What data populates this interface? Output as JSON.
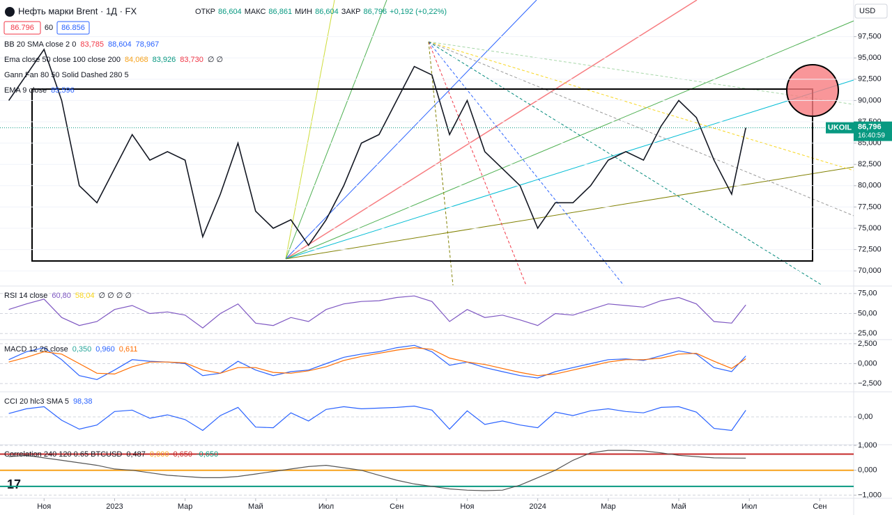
{
  "header": {
    "symbol": "Нефть марки Brent · 1Д · FX",
    "ohlc": [
      {
        "label": "ОТКР",
        "value": "86,604"
      },
      {
        "label": "МАКС",
        "value": "86,861"
      },
      {
        "label": "МИН",
        "value": "86,604"
      },
      {
        "label": "ЗАКР",
        "value": "86,796"
      }
    ],
    "change": "+0,192 (+0,22%)",
    "currency": "USD",
    "boxes": [
      "86.796",
      "60",
      "86.856"
    ]
  },
  "chart_data": [
    {
      "type": "line",
      "xlim": [
        -0.25,
        23.96
      ],
      "ylim": [
        68.3,
        101.8
      ],
      "yticks": [
        {
          "value": 70,
          "label": "70,000"
        },
        {
          "value": 72.5,
          "label": "72,500"
        },
        {
          "value": 75,
          "label": "75,000"
        },
        {
          "value": 77.5,
          "label": "77,500"
        },
        {
          "value": 80,
          "label": "80,000"
        },
        {
          "value": 82.5,
          "label": "82,500"
        },
        {
          "value": 85,
          "label": "85,000"
        },
        {
          "value": 87.5,
          "label": "87,500"
        },
        {
          "value": 90,
          "label": "90,000"
        },
        {
          "value": 92.5,
          "label": "92,500"
        },
        {
          "value": 95,
          "label": "95,000"
        },
        {
          "value": 97.5,
          "label": "97,500"
        }
      ],
      "x": [
        0,
        0.5,
        1,
        1.5,
        2,
        2.5,
        3,
        3.5,
        4,
        4.5,
        5,
        5.5,
        6,
        6.5,
        7,
        7.5,
        8,
        8.5,
        9,
        9.5,
        10,
        10.5,
        11,
        11.5,
        12,
        12.5,
        13,
        13.5,
        14,
        14.5,
        15,
        15.5,
        16,
        16.5,
        17,
        17.5,
        18,
        18.5,
        19,
        19.5,
        20,
        20.5,
        20.9
      ],
      "series": [
        {
          "color": "#131722",
          "values": [
            90,
            93,
            96,
            90,
            80,
            78,
            82,
            86,
            83,
            84,
            83,
            74,
            79,
            85,
            77,
            75,
            76,
            73,
            76,
            80,
            85,
            86,
            90,
            94,
            93,
            86,
            90,
            84,
            82,
            80,
            75,
            78,
            78,
            80,
            83,
            84,
            83,
            87,
            90,
            88,
            83,
            79,
            86.796
          ]
        }
      ],
      "last": {
        "value": 86.796,
        "label": "86,796",
        "symbol": "UKOIL",
        "time": "16:40:59"
      },
      "legend": [
        [
          {
            "text": "BB 20 SMA close 2 0",
            "color": "#131722"
          },
          {
            "text": "83,785",
            "color": "#f23645"
          },
          {
            "text": "88,604",
            "color": "#2962ff"
          },
          {
            "text": "78,967",
            "color": "#2962ff"
          }
        ],
        [
          {
            "text": "Ema close 50 close 100 close 200",
            "color": "#131722"
          },
          {
            "text": "84,068",
            "color": "#f7a21b"
          },
          {
            "text": "83,926",
            "color": "#089981"
          },
          {
            "text": "83,730",
            "color": "#f23645"
          },
          {
            "text": "∅ ∅",
            "color": "#131722"
          }
        ],
        [
          {
            "text": "Gann Fan 80 50 Solid Dashed 280 5",
            "color": "#131722"
          }
        ],
        [
          {
            "text": "EMA 9 close",
            "color": "#131722"
          },
          {
            "text": "85,596",
            "color": "#2962ff"
          }
        ]
      ]
    },
    {
      "type": "line",
      "xlim": [
        -0.25,
        23.96
      ],
      "ylim": [
        18.2,
        83.5
      ],
      "yticks": [
        {
          "value": 25,
          "label": "25,00"
        },
        {
          "value": 50,
          "label": "50,00"
        },
        {
          "value": 75,
          "label": "75,00"
        }
      ],
      "x": [
        0,
        0.5,
        1,
        1.5,
        2,
        2.5,
        3,
        3.5,
        4,
        4.5,
        5,
        5.5,
        6,
        6.5,
        7,
        7.5,
        8,
        8.5,
        9,
        9.5,
        10,
        10.5,
        11,
        11.5,
        12,
        12.5,
        13,
        13.5,
        14,
        14.5,
        15,
        15.5,
        16,
        16.5,
        17,
        17.5,
        18,
        18.5,
        19,
        19.5,
        20,
        20.5,
        20.9
      ],
      "series": [
        {
          "color": "#7e57c2",
          "values": [
            55,
            62,
            68,
            45,
            35,
            40,
            55,
            60,
            50,
            52,
            48,
            32,
            50,
            62,
            38,
            35,
            45,
            40,
            55,
            62,
            65,
            66,
            70,
            72,
            65,
            40,
            55,
            45,
            48,
            42,
            35,
            50,
            48,
            55,
            62,
            60,
            58,
            66,
            70,
            62,
            40,
            38,
            60.8
          ]
        }
      ],
      "legend": [
        [
          {
            "text": "RSI 14 close",
            "color": "#131722"
          },
          {
            "text": "60,80",
            "color": "#7e57c2"
          },
          {
            "text": "58,04",
            "color": "#f7d51b"
          },
          {
            "text": "∅ ∅ ∅ ∅",
            "color": "#131722"
          }
        ]
      ]
    },
    {
      "type": "line",
      "xlim": [
        -0.25,
        23.96
      ],
      "ylim": [
        -3.45,
        2.93
      ],
      "yticks": [
        {
          "value": -2.5,
          "label": "−2,500"
        },
        {
          "value": 0,
          "label": "0,000"
        },
        {
          "value": 2.5,
          "label": "2,500"
        }
      ],
      "x": [
        0,
        0.5,
        1,
        1.5,
        2,
        2.5,
        3,
        3.5,
        4,
        4.5,
        5,
        5.5,
        6,
        6.5,
        7,
        7.5,
        8,
        8.5,
        9,
        9.5,
        10,
        10.5,
        11,
        11.5,
        12,
        12.5,
        13,
        13.5,
        14,
        14.5,
        15,
        15.5,
        16,
        16.5,
        17,
        17.5,
        18,
        18.5,
        19,
        19.5,
        20,
        20.5,
        20.9
      ],
      "series": [
        {
          "color": "#2962ff",
          "values": [
            0.5,
            1.5,
            2.0,
            0.5,
            -1.5,
            -2.0,
            -0.8,
            0.5,
            0.3,
            0.2,
            0.0,
            -1.5,
            -1.2,
            0.3,
            -0.8,
            -1.5,
            -1.0,
            -0.8,
            0.0,
            0.8,
            1.2,
            1.5,
            2.0,
            2.3,
            1.5,
            -0.2,
            0.2,
            -0.5,
            -1.0,
            -1.5,
            -1.8,
            -1.0,
            -0.5,
            0.0,
            0.5,
            0.6,
            0.4,
            1.0,
            1.6,
            1.2,
            -0.5,
            -1.0,
            0.96
          ]
        },
        {
          "color": "#ff6d00",
          "values": [
            0.2,
            0.8,
            1.5,
            1.2,
            0.0,
            -1.2,
            -1.3,
            -0.4,
            0.2,
            0.2,
            0.1,
            -0.8,
            -1.2,
            -0.5,
            -0.5,
            -1.1,
            -1.2,
            -0.9,
            -0.4,
            0.4,
            0.9,
            1.3,
            1.7,
            2.0,
            1.8,
            0.7,
            0.2,
            -0.1,
            -0.6,
            -1.1,
            -1.5,
            -1.3,
            -0.8,
            -0.3,
            0.2,
            0.5,
            0.5,
            0.7,
            1.2,
            1.3,
            0.3,
            -0.6,
            0.611
          ]
        }
      ],
      "legend": [
        [
          {
            "text": "MACD 12 26 close",
            "color": "#131722"
          },
          {
            "text": "0,350",
            "color": "#26a69a"
          },
          {
            "text": "0,960",
            "color": "#2962ff"
          },
          {
            "text": "0,611",
            "color": "#ff6d00"
          }
        ]
      ]
    },
    {
      "type": "line",
      "xlim": [
        -0.25,
        23.96
      ],
      "ylim": [
        -400,
        360
      ],
      "yticks": [
        {
          "value": 0,
          "label": "0,00"
        }
      ],
      "x": [
        0,
        0.5,
        1,
        1.5,
        2,
        2.5,
        3,
        3.5,
        4,
        4.5,
        5,
        5.5,
        6,
        6.5,
        7,
        7.5,
        8,
        8.5,
        9,
        9.5,
        10,
        10.5,
        11,
        11.5,
        12,
        12.5,
        13,
        13.5,
        14,
        14.5,
        15,
        15.5,
        16,
        16.5,
        17,
        17.5,
        18,
        18.5,
        19,
        19.5,
        20,
        20.5,
        20.9
      ],
      "series": [
        {
          "color": "#2962ff",
          "values": [
            50,
            120,
            150,
            -50,
            -180,
            -120,
            80,
            100,
            -20,
            30,
            -40,
            -200,
            20,
            140,
            -150,
            -160,
            60,
            -60,
            110,
            150,
            120,
            130,
            140,
            160,
            100,
            -180,
            90,
            -110,
            -60,
            -120,
            -160,
            70,
            20,
            90,
            120,
            80,
            60,
            140,
            150,
            70,
            -170,
            -200,
            98.38
          ]
        }
      ],
      "legend": [
        [
          {
            "text": "CCI 20 hlc3 SMA 5",
            "color": "#131722"
          },
          {
            "text": "98,38",
            "color": "#2962ff"
          }
        ]
      ]
    },
    {
      "type": "line",
      "xlim": [
        -0.25,
        23.96
      ],
      "ylim": [
        -1.1,
        1.0
      ],
      "yticks": [
        {
          "value": -1,
          "label": "−1,000"
        },
        {
          "value": 0,
          "label": "0,000"
        },
        {
          "value": 1,
          "label": "1,000"
        }
      ],
      "x": [
        0,
        0.5,
        1,
        1.5,
        2,
        2.5,
        3,
        3.5,
        4,
        4.5,
        5,
        5.5,
        6,
        6.5,
        7,
        7.5,
        8,
        8.5,
        9,
        9.5,
        10,
        10.5,
        11,
        11.5,
        12,
        12.5,
        13,
        13.5,
        14,
        14.5,
        15,
        15.5,
        16,
        16.5,
        17,
        17.5,
        18,
        18.5,
        19,
        19.5,
        20,
        20.5,
        20.9
      ],
      "series": [
        {
          "color": "#555555",
          "values": [
            0.55,
            0.6,
            0.5,
            0.4,
            0.3,
            0.2,
            0.05,
            0.0,
            -0.1,
            -0.2,
            -0.25,
            -0.3,
            -0.3,
            -0.25,
            -0.15,
            -0.05,
            0.05,
            0.15,
            0.2,
            0.1,
            0.0,
            -0.2,
            -0.4,
            -0.55,
            -0.65,
            -0.75,
            -0.8,
            -0.82,
            -0.8,
            -0.6,
            -0.3,
            0.0,
            0.4,
            0.7,
            0.8,
            0.8,
            0.78,
            0.7,
            0.6,
            0.55,
            0.5,
            0.49,
            0.487
          ]
        }
      ],
      "levels": [
        {
          "value": 0.65,
          "color": "#c62828"
        },
        {
          "value": 0,
          "color": "#f7a21b"
        },
        {
          "value": -0.65,
          "color": "#089981"
        }
      ],
      "legend": [
        [
          {
            "text": "Correlation 240 120 0.65 BTCUSD",
            "color": "#131722"
          },
          {
            "text": "0,487",
            "color": "#131722"
          },
          {
            "text": "0,000",
            "color": "#f7a21b"
          },
          {
            "text": "0,650",
            "color": "#c62828"
          },
          {
            "text": "-0,650",
            "color": "#089981"
          }
        ]
      ],
      "xticks": [
        {
          "value": 1,
          "label": "Ноя"
        },
        {
          "value": 3,
          "label": "2023"
        },
        {
          "value": 5,
          "label": "Мар"
        },
        {
          "value": 7,
          "label": "Май"
        },
        {
          "value": 9,
          "label": "Июл"
        },
        {
          "value": 11,
          "label": "Сен"
        },
        {
          "value": 13,
          "label": "Ноя"
        },
        {
          "value": 15,
          "label": "2024"
        },
        {
          "value": 17,
          "label": "Мар"
        },
        {
          "value": 19,
          "label": "Май"
        },
        {
          "value": 21,
          "label": "Июл"
        },
        {
          "value": 23,
          "label": "Сен"
        }
      ]
    }
  ]
}
